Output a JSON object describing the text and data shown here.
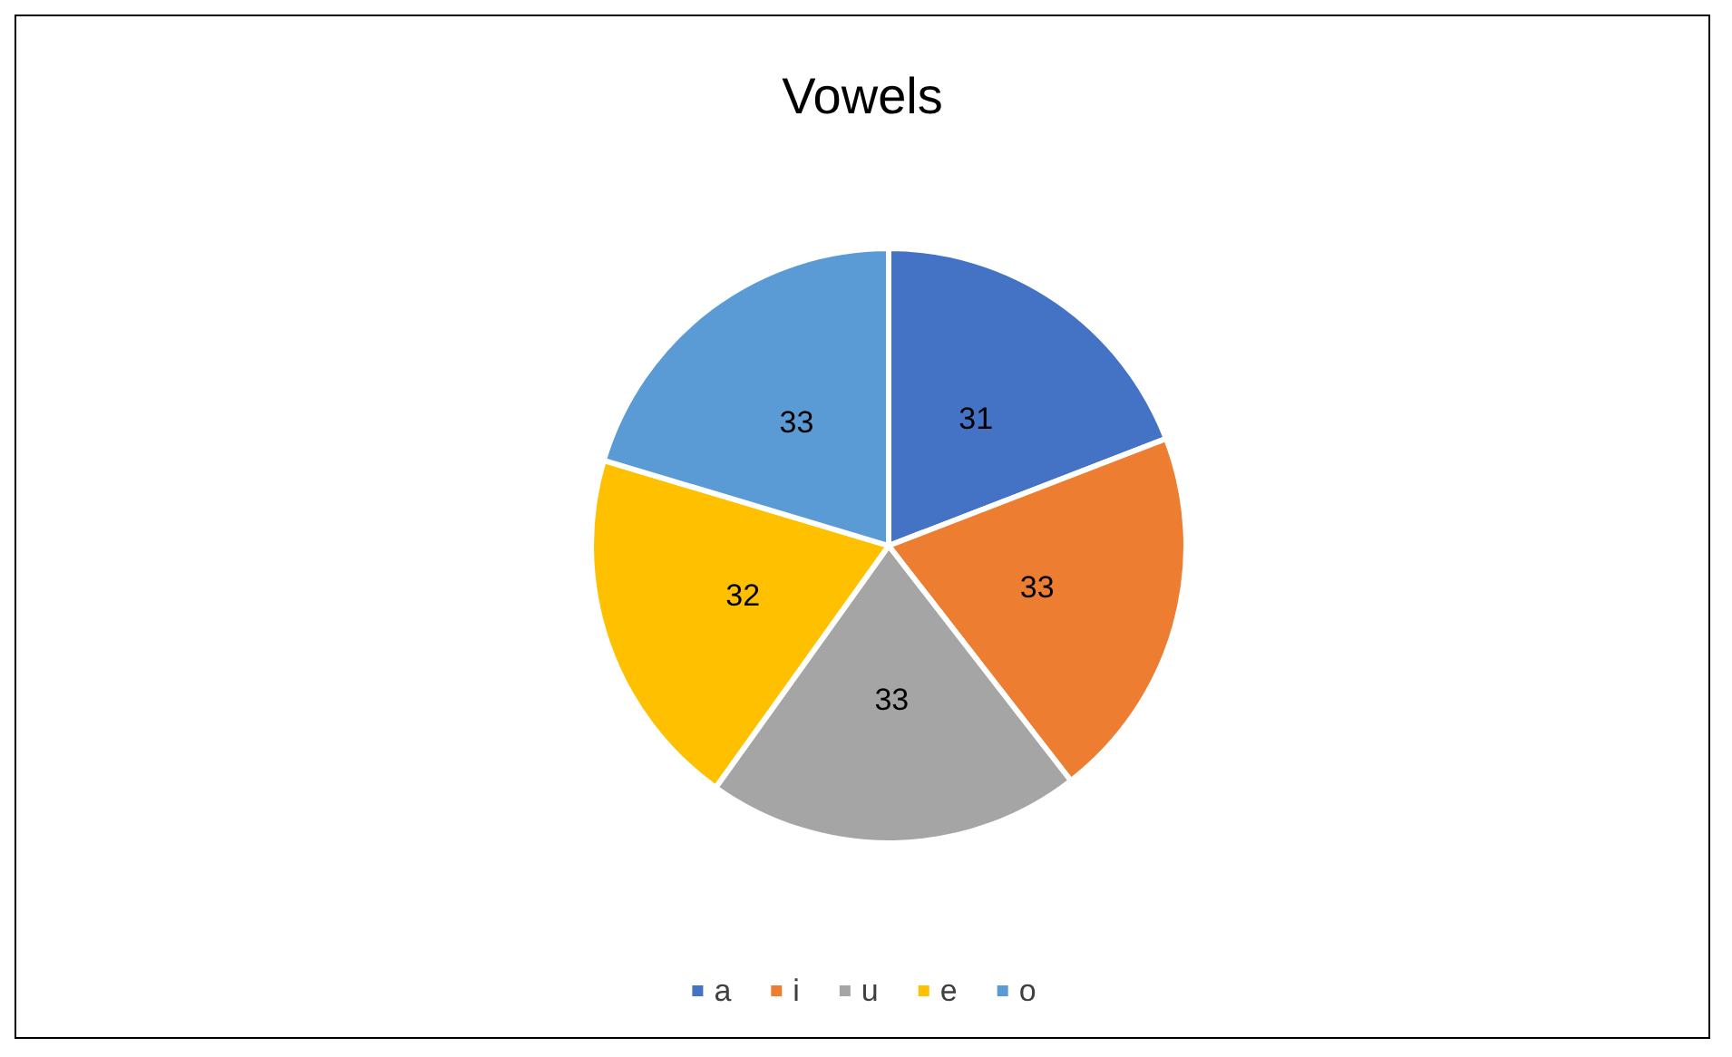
{
  "chart_data": {
    "type": "pie",
    "title": "Vowels",
    "categories": [
      "a",
      "i",
      "u",
      "e",
      "o"
    ],
    "values": [
      31,
      33,
      33,
      32,
      33
    ],
    "colors": [
      "#4472c4",
      "#ed7d31",
      "#a5a5a5",
      "#ffc000",
      "#5b9bd5"
    ],
    "data_labels": true,
    "legend": "bottom"
  }
}
